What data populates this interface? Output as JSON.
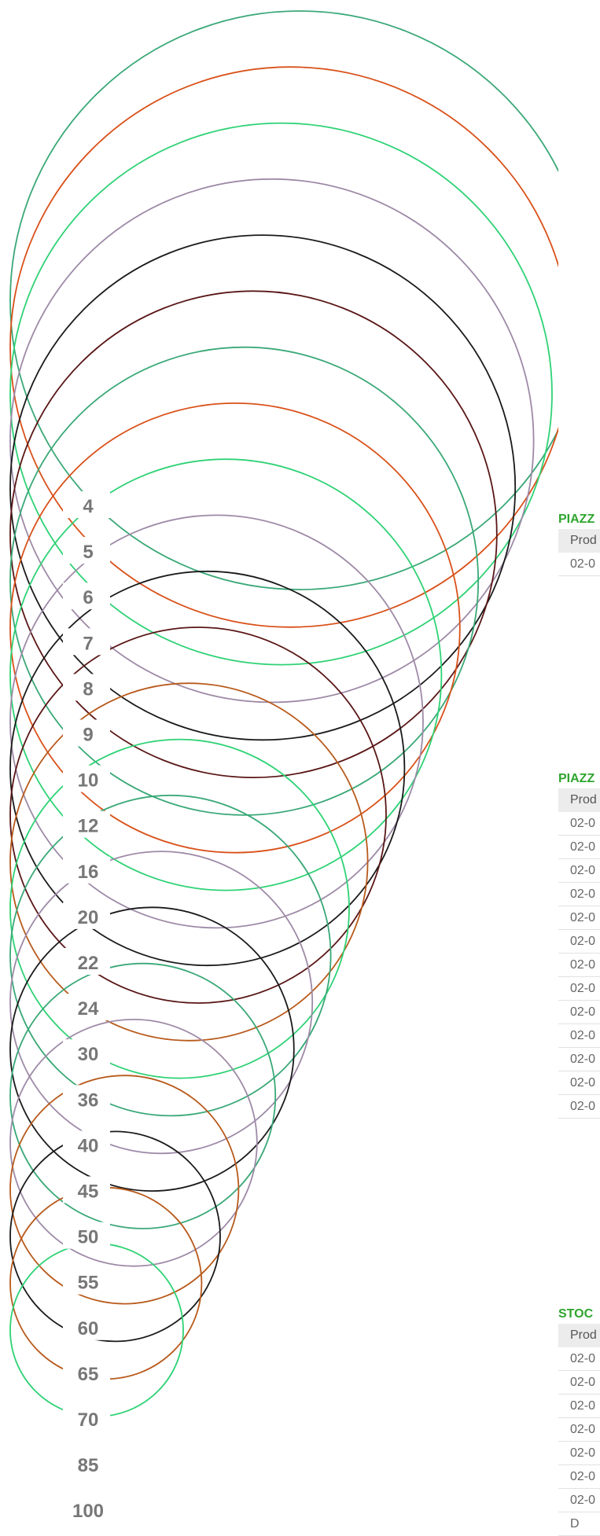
{
  "size_scale": {
    "labels": [
      "4",
      "5",
      "6",
      "7",
      "8",
      "9",
      "10",
      "12",
      "16",
      "20",
      "22",
      "24",
      "30",
      "36",
      "40",
      "45",
      "50",
      "55",
      "60",
      "65",
      "70",
      "85",
      "100"
    ],
    "colors": [
      "#3aa877",
      "#d9511a",
      "#2ed275",
      "#9e8aa7",
      "#1a1a1a",
      "#5a1616",
      "#3aa877",
      "#d9511a",
      "#2ed275",
      "#9e8aa7",
      "#1a1a1a",
      "#5a1616",
      "#b85a1c",
      "#2ed275",
      "#3aa877",
      "#9e8aa7",
      "#1a1a1a",
      "#3aa877",
      "#9e8aa7",
      "#b85a1c",
      "#1a1a1a",
      "#b85a1c",
      "#2ed275"
    ]
  },
  "panels": [
    {
      "title": "PIAZZ",
      "header": "Prod",
      "rows": [
        "02-0"
      ]
    },
    {
      "title": "PIAZZ",
      "header": "Prod",
      "rows": [
        "02-0",
        "02-0",
        "02-0",
        "02-0",
        "02-0",
        "02-0",
        "02-0",
        "02-0",
        "02-0",
        "02-0",
        "02-0",
        "02-0",
        "02-0"
      ]
    },
    {
      "title": "STOC",
      "header": "Prod",
      "rows": [
        "02-0",
        "02-0",
        "02-0",
        "02-0",
        "02-0",
        "02-0",
        "02-0",
        "D"
      ]
    }
  ]
}
